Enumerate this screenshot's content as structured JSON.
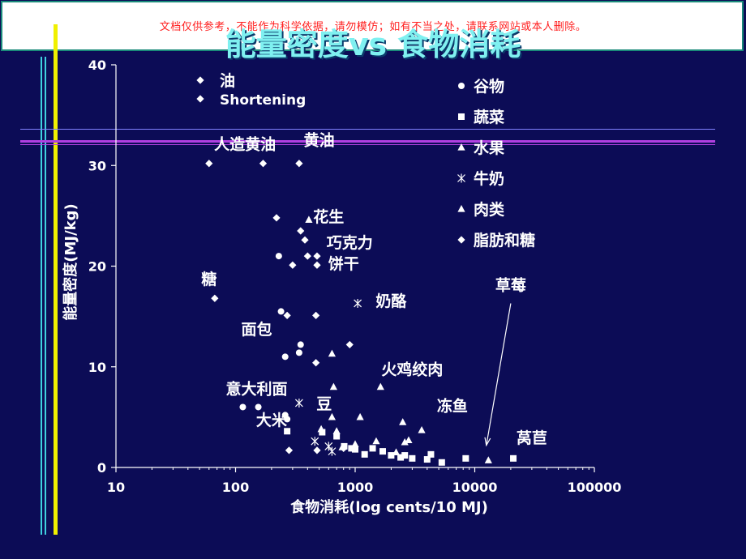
{
  "watermark": "文档仅供参考，不能作为科学依据，请勿模仿；如有不当之处，请联系网站或本人删除。",
  "title": "能量密度vs 食物消耗",
  "chart_data": {
    "type": "scatter",
    "title": "能量密度vs 食物消耗",
    "xlabel": "食物消耗(log cents/10 MJ)",
    "ylabel": "能量密度(MJ/kg)",
    "x_scale": "log",
    "xlim": [
      10,
      100000
    ],
    "ylim": [
      0,
      40
    ],
    "x_ticks": [
      "10",
      "100",
      "1000",
      "10000",
      "100000"
    ],
    "y_ticks": [
      "0",
      "10",
      "20",
      "30",
      "40"
    ],
    "grid": false,
    "legend_position": "top-right",
    "legend_top_left": [
      {
        "marker": "diamond",
        "label": "油"
      },
      {
        "marker": "diamond",
        "label": "Shortening"
      }
    ],
    "legend": [
      {
        "marker": "circle",
        "label": "谷物"
      },
      {
        "marker": "square",
        "label": "蔬菜"
      },
      {
        "marker": "triangle",
        "label": "水果"
      },
      {
        "marker": "star",
        "label": "牛奶"
      },
      {
        "marker": "triangle",
        "label": "肉类"
      },
      {
        "marker": "diamond",
        "label": "脂肪和糖"
      }
    ],
    "annotations": [
      {
        "text": "人造黄油",
        "x": 120,
        "y": 31.6
      },
      {
        "text": "黄油",
        "x": 500,
        "y": 32.0
      },
      {
        "text": "花生",
        "x": 600,
        "y": 24.4
      },
      {
        "text": "巧克力",
        "x": 900,
        "y": 21.8
      },
      {
        "text": "饼干",
        "x": 800,
        "y": 19.7
      },
      {
        "text": "糖",
        "x": 60,
        "y": 18.2
      },
      {
        "text": "奶酪",
        "x": 2000,
        "y": 16.0
      },
      {
        "text": "面包",
        "x": 150,
        "y": 13.2
      },
      {
        "text": "火鸡绞肉",
        "x": 3000,
        "y": 9.2
      },
      {
        "text": "意大利面",
        "x": 150,
        "y": 7.3
      },
      {
        "text": "豆",
        "x": 550,
        "y": 5.8
      },
      {
        "text": "大米",
        "x": 200,
        "y": 4.2
      },
      {
        "text": "冻鱼",
        "x": 6500,
        "y": 5.6
      },
      {
        "text": "草莓",
        "x": 20000,
        "y": 17.6
      },
      {
        "text": "莴苣",
        "x": 30000,
        "y": 2.4
      }
    ],
    "arrow": {
      "from": [
        20000,
        16.3
      ],
      "to": [
        12500,
        2.2
      ]
    },
    "series": [
      {
        "name": "谷物",
        "marker": "circle",
        "points": [
          [
            230,
            21.0
          ],
          [
            240,
            15.5
          ],
          [
            350,
            12.2
          ],
          [
            340,
            11.4
          ],
          [
            260,
            11.0
          ],
          [
            115,
            6.0
          ],
          [
            155,
            6.0
          ],
          [
            260,
            5.2
          ],
          [
            270,
            4.8
          ]
        ]
      },
      {
        "name": "蔬菜",
        "marker": "square",
        "points": [
          [
            270,
            3.6
          ],
          [
            530,
            3.5
          ],
          [
            700,
            3.1
          ],
          [
            810,
            2.1
          ],
          [
            930,
            1.9
          ],
          [
            1000,
            1.8
          ],
          [
            1200,
            1.3
          ],
          [
            1400,
            1.9
          ],
          [
            1700,
            1.6
          ],
          [
            2000,
            1.2
          ],
          [
            2400,
            1.0
          ],
          [
            2600,
            1.2
          ],
          [
            3000,
            0.9
          ],
          [
            4000,
            0.8
          ],
          [
            4300,
            1.3
          ],
          [
            5300,
            0.5
          ],
          [
            8400,
            0.9
          ],
          [
            21000,
            0.9
          ]
        ]
      },
      {
        "name": "水果",
        "marker": "triangle",
        "points": [
          [
            410,
            24.6
          ],
          [
            520,
            3.8
          ],
          [
            640,
            5.0
          ],
          [
            700,
            3.6
          ],
          [
            780,
            2.0
          ],
          [
            1000,
            2.3
          ],
          [
            1500,
            2.6
          ],
          [
            2200,
            1.5
          ],
          [
            2800,
            2.7
          ],
          [
            3600,
            3.7
          ],
          [
            13000,
            0.7
          ]
        ]
      },
      {
        "name": "牛奶",
        "marker": "star",
        "points": [
          [
            1050,
            16.3
          ],
          [
            340,
            6.4
          ],
          [
            460,
            2.6
          ],
          [
            600,
            2.1
          ],
          [
            640,
            1.6
          ]
        ]
      },
      {
        "name": "肉类",
        "marker": "triangle",
        "points": [
          [
            640,
            11.3
          ],
          [
            660,
            8.0
          ],
          [
            1100,
            5.0
          ],
          [
            1630,
            8.0
          ],
          [
            2500,
            4.5
          ],
          [
            2600,
            2.5
          ]
        ]
      },
      {
        "name": "脂肪和糖",
        "marker": "diamond",
        "points": [
          [
            60,
            30.2
          ],
          [
            170,
            30.2
          ],
          [
            340,
            30.2
          ],
          [
            220,
            24.8
          ],
          [
            350,
            23.5
          ],
          [
            380,
            22.6
          ],
          [
            400,
            21.0
          ],
          [
            480,
            21.0
          ],
          [
            300,
            20.1
          ],
          [
            480,
            20.1
          ],
          [
            67,
            16.8
          ],
          [
            270,
            15.1
          ],
          [
            470,
            15.1
          ],
          [
            900,
            12.2
          ],
          [
            470,
            10.4
          ],
          [
            280,
            1.7
          ],
          [
            480,
            1.7
          ],
          [
            800,
            1.9
          ]
        ]
      }
    ]
  }
}
